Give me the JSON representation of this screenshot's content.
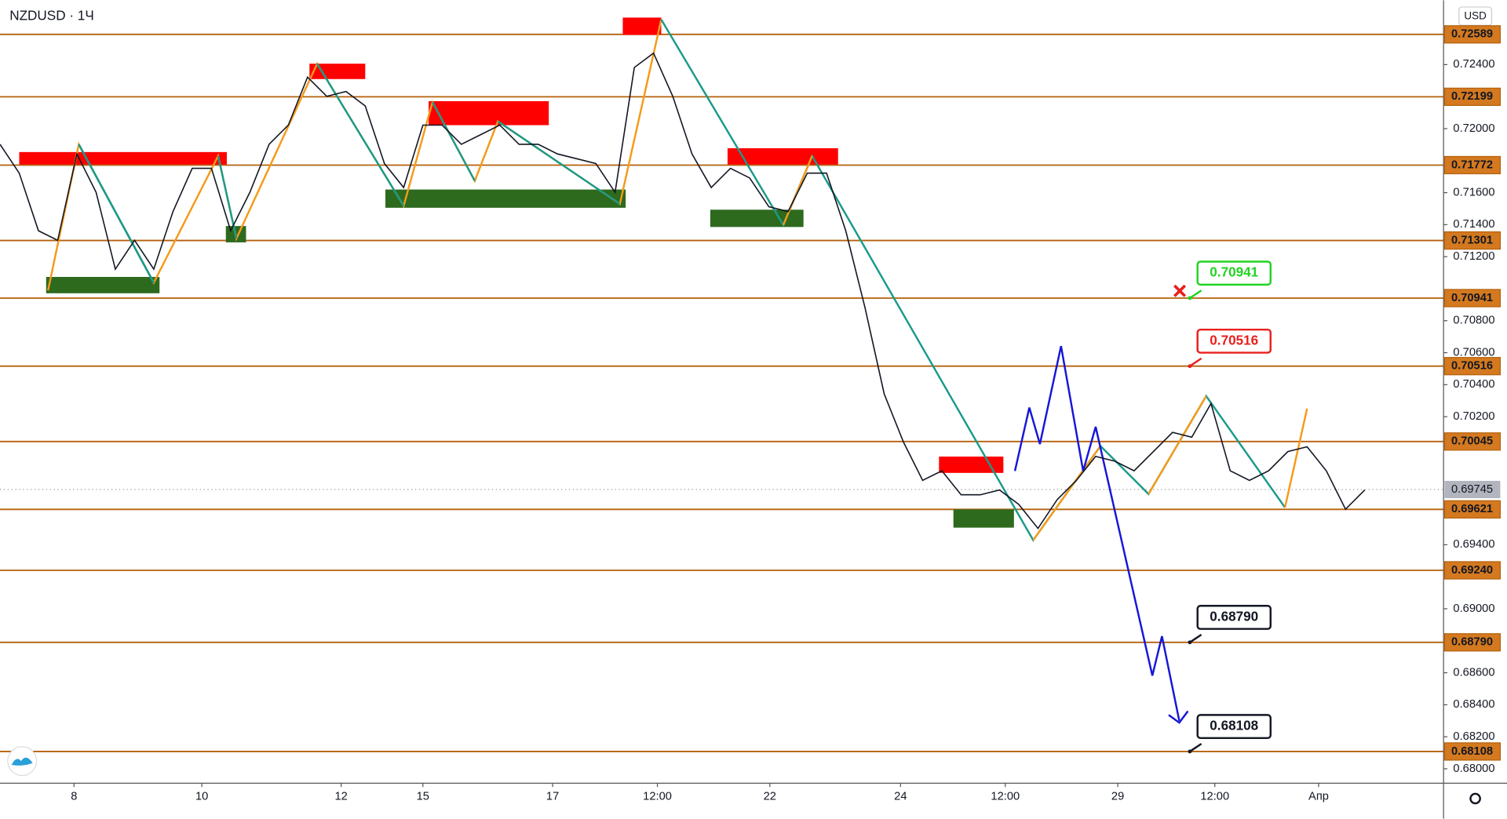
{
  "header": {
    "symbol": "NZDUSD · 1Ч",
    "currency": "USD"
  },
  "chart_data": {
    "type": "line",
    "series": [
      {
        "name": "NZDUSD",
        "color": "#131722",
        "values": [
          0.71902,
          0.71722,
          0.71362,
          0.71302,
          0.71842,
          0.71602,
          0.71122,
          0.71302,
          0.71122,
          0.71482,
          0.71752,
          0.71752,
          0.71362,
          0.71602,
          0.71902,
          0.72022,
          0.72322,
          0.72202,
          0.72232,
          0.72142,
          0.71782,
          0.71632,
          0.72022,
          0.72022,
          0.71902,
          0.71962,
          0.72022,
          0.71902,
          0.71902,
          0.71842,
          0.71812,
          0.71782,
          0.71602,
          0.72382,
          0.72472,
          0.72202,
          0.71842,
          0.71632,
          0.71752,
          0.71692,
          0.71512,
          0.71482,
          0.71722,
          0.71722,
          0.71362,
          0.70882,
          0.70342,
          0.70042,
          0.69802,
          0.69862,
          0.69712,
          0.69712,
          0.69742,
          0.69652,
          0.69502,
          0.69682,
          0.69802,
          0.69952,
          0.69922,
          0.69862,
          0.69982,
          0.70102,
          0.70072,
          0.70282,
          0.69862,
          0.69802,
          0.69862,
          0.69982,
          0.70012,
          0.69862,
          0.69622,
          0.69742
        ]
      }
    ],
    "ylim": [
      0.6791,
      0.72802
    ],
    "yticks": [
      {
        "value": 0.724,
        "label": "0.72400"
      },
      {
        "value": 0.72,
        "label": "0.72000"
      },
      {
        "value": 0.716,
        "label": "0.71600"
      },
      {
        "value": 0.714,
        "label": "0.71400"
      },
      {
        "value": 0.712,
        "label": "0.71200"
      },
      {
        "value": 0.708,
        "label": "0.70800"
      },
      {
        "value": 0.706,
        "label": "0.70600"
      },
      {
        "value": 0.704,
        "label": "0.70400"
      },
      {
        "value": 0.702,
        "label": "0.70200"
      },
      {
        "value": 0.694,
        "label": "0.69400"
      },
      {
        "value": 0.69,
        "label": "0.69000"
      },
      {
        "value": 0.686,
        "label": "0.68600"
      },
      {
        "value": 0.684,
        "label": "0.68400"
      },
      {
        "value": 0.682,
        "label": "0.68200"
      },
      {
        "value": 0.68,
        "label": "0.68000"
      }
    ],
    "xlim": [
      0,
      75.1
    ],
    "xticks": [
      {
        "value": 3.85,
        "label": "8"
      },
      {
        "value": 10.5,
        "label": "10"
      },
      {
        "value": 17.75,
        "label": "12"
      },
      {
        "value": 22,
        "label": "15"
      },
      {
        "value": 28.75,
        "label": "17"
      },
      {
        "value": 34.2,
        "label": "12:00"
      },
      {
        "value": 40.05,
        "label": "22"
      },
      {
        "value": 46.85,
        "label": "24"
      },
      {
        "value": 52.3,
        "label": "12:00"
      },
      {
        "value": 58.15,
        "label": "29"
      },
      {
        "value": 63.2,
        "label": "12:00"
      },
      {
        "value": 68.6,
        "label": "Апр"
      }
    ],
    "levels": [
      {
        "value": 0.72589,
        "label": "0.72589"
      },
      {
        "value": 0.72199,
        "label": "0.72199"
      },
      {
        "value": 0.71772,
        "label": "0.71772"
      },
      {
        "value": 0.71301,
        "label": "0.71301"
      },
      {
        "value": 0.70941,
        "label": "0.70941"
      },
      {
        "value": 0.70516,
        "label": "0.70516"
      },
      {
        "value": 0.70045,
        "label": "0.70045"
      },
      {
        "value": 0.69621,
        "label": "0.69621"
      },
      {
        "value": 0.6924,
        "label": "0.69240"
      },
      {
        "value": 0.6879,
        "label": "0.68790"
      },
      {
        "value": 0.68108,
        "label": "0.68108"
      }
    ],
    "level_color": "#b5610c",
    "last_price": {
      "value": 0.69745,
      "label": "0.69745"
    },
    "annotations": [
      {
        "text": "0.70941",
        "value": 0.70941,
        "color": "#22d322"
      },
      {
        "text": "0.70516",
        "value": 0.70516,
        "color": "#e8201c"
      },
      {
        "text": "0.68790",
        "value": 0.6879,
        "color": "#131722"
      },
      {
        "text": "0.68108",
        "value": 0.68108,
        "color": "#131722"
      }
    ]
  }
}
